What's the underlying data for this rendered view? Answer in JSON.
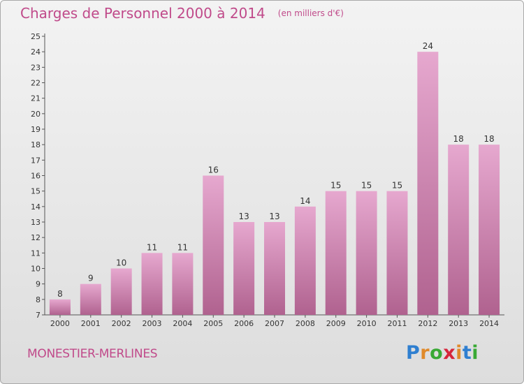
{
  "title": "Charges de Personnel 2000 à 2014",
  "units": "(en milliers d'€)",
  "location": "MONESTIER-MERLINES",
  "logo": {
    "letters": [
      "P",
      "r",
      "o",
      "x",
      "i",
      "t",
      "i"
    ],
    "colors": [
      "#2f7fd0",
      "#e08a2a",
      "#39a935",
      "#d6263b",
      "#e08a2a",
      "#2f7fd0",
      "#39a935"
    ]
  },
  "colors": {
    "title": "#c04a8a",
    "bar_light": "#e6a8cf",
    "bar_dark": "#b0628f"
  },
  "chart_data": {
    "type": "bar",
    "title": "Charges de Personnel 2000 à 2014",
    "xlabel": "",
    "ylabel": "",
    "categories": [
      "2000",
      "2001",
      "2002",
      "2003",
      "2004",
      "2005",
      "2006",
      "2007",
      "2008",
      "2009",
      "2010",
      "2011",
      "2012",
      "2013",
      "2014"
    ],
    "values": [
      8,
      9,
      10,
      11,
      11,
      16,
      13,
      13,
      14,
      15,
      15,
      15,
      24,
      18,
      18
    ],
    "ylim": [
      7,
      25
    ],
    "yticks": [
      7,
      8,
      9,
      10,
      11,
      12,
      13,
      14,
      15,
      16,
      17,
      18,
      19,
      20,
      21,
      22,
      23,
      24,
      25
    ],
    "grid": false,
    "data_labels": true
  }
}
